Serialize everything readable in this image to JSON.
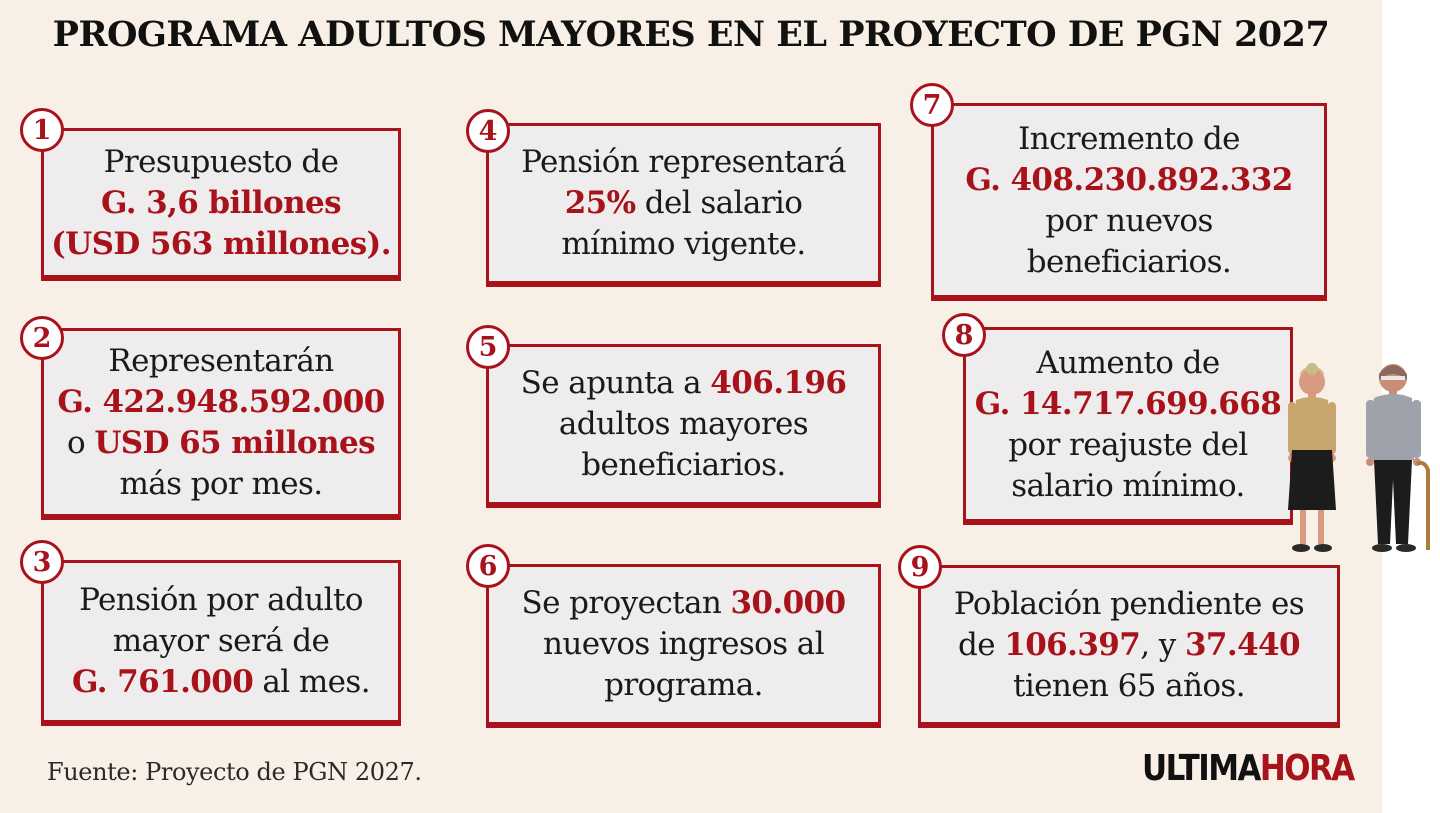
{
  "title": "PROGRAMA ADULTOS MAYORES EN EL PROYECTO DE PGN 2027",
  "colors": {
    "accent": "#a8121b",
    "background": "#f8efe6",
    "card": "#eeecec"
  },
  "cards": [
    {
      "number": "1",
      "lines": [
        [
          {
            "t": "Presupuesto de"
          }
        ],
        [
          {
            "t": "G. 3,6 billones",
            "hl": true
          }
        ],
        [
          {
            "t": "(USD 563 millones).",
            "hl": true
          }
        ]
      ]
    },
    {
      "number": "2",
      "lines": [
        [
          {
            "t": "Representarán"
          }
        ],
        [
          {
            "t": "G. 422.948.592.000",
            "hl": true
          }
        ],
        [
          {
            "t": "o "
          },
          {
            "t": "USD 65 millones",
            "hl": true
          }
        ],
        [
          {
            "t": "más por mes."
          }
        ]
      ]
    },
    {
      "number": "3",
      "lines": [
        [
          {
            "t": "Pensión por adulto"
          }
        ],
        [
          {
            "t": "mayor será de"
          }
        ],
        [
          {
            "t": "G. 761.000",
            "hl": true
          },
          {
            "t": " al mes."
          }
        ]
      ]
    },
    {
      "number": "4",
      "lines": [
        [
          {
            "t": "Pensión representará"
          }
        ],
        [
          {
            "t": "25%",
            "hl": true
          },
          {
            "t": " del salario"
          }
        ],
        [
          {
            "t": "mínimo vigente."
          }
        ]
      ]
    },
    {
      "number": "5",
      "lines": [
        [
          {
            "t": "Se apunta a "
          },
          {
            "t": "406.196",
            "hl": true
          }
        ],
        [
          {
            "t": "adultos mayores"
          }
        ],
        [
          {
            "t": "beneficiarios."
          }
        ]
      ]
    },
    {
      "number": "6",
      "lines": [
        [
          {
            "t": "Se proyectan "
          },
          {
            "t": "30.000",
            "hl": true
          }
        ],
        [
          {
            "t": "nuevos ingresos al"
          }
        ],
        [
          {
            "t": "programa."
          }
        ]
      ]
    },
    {
      "number": "7",
      "lines": [
        [
          {
            "t": "Incremento de"
          }
        ],
        [
          {
            "t": "G. 408.230.892.332",
            "hl": true
          }
        ],
        [
          {
            "t": "por nuevos"
          }
        ],
        [
          {
            "t": "beneficiarios."
          }
        ]
      ]
    },
    {
      "number": "8",
      "lines": [
        [
          {
            "t": "Aumento de"
          }
        ],
        [
          {
            "t": "G. 14.717.699.668",
            "hl": true
          }
        ],
        [
          {
            "t": "por reajuste del"
          }
        ],
        [
          {
            "t": "salario mínimo."
          }
        ]
      ]
    },
    {
      "number": "9",
      "lines": [
        [
          {
            "t": "Población pendiente es"
          }
        ],
        [
          {
            "t": "de "
          },
          {
            "t": "106.397",
            "hl": true
          },
          {
            "t": ", y "
          },
          {
            "t": "37.440",
            "hl": true
          }
        ],
        [
          {
            "t": "tienen 65 años."
          }
        ]
      ]
    }
  ],
  "source": "Fuente: Proyecto de PGN 2027.",
  "logo": {
    "part1": "ULTIMA",
    "part2": "HORA"
  }
}
